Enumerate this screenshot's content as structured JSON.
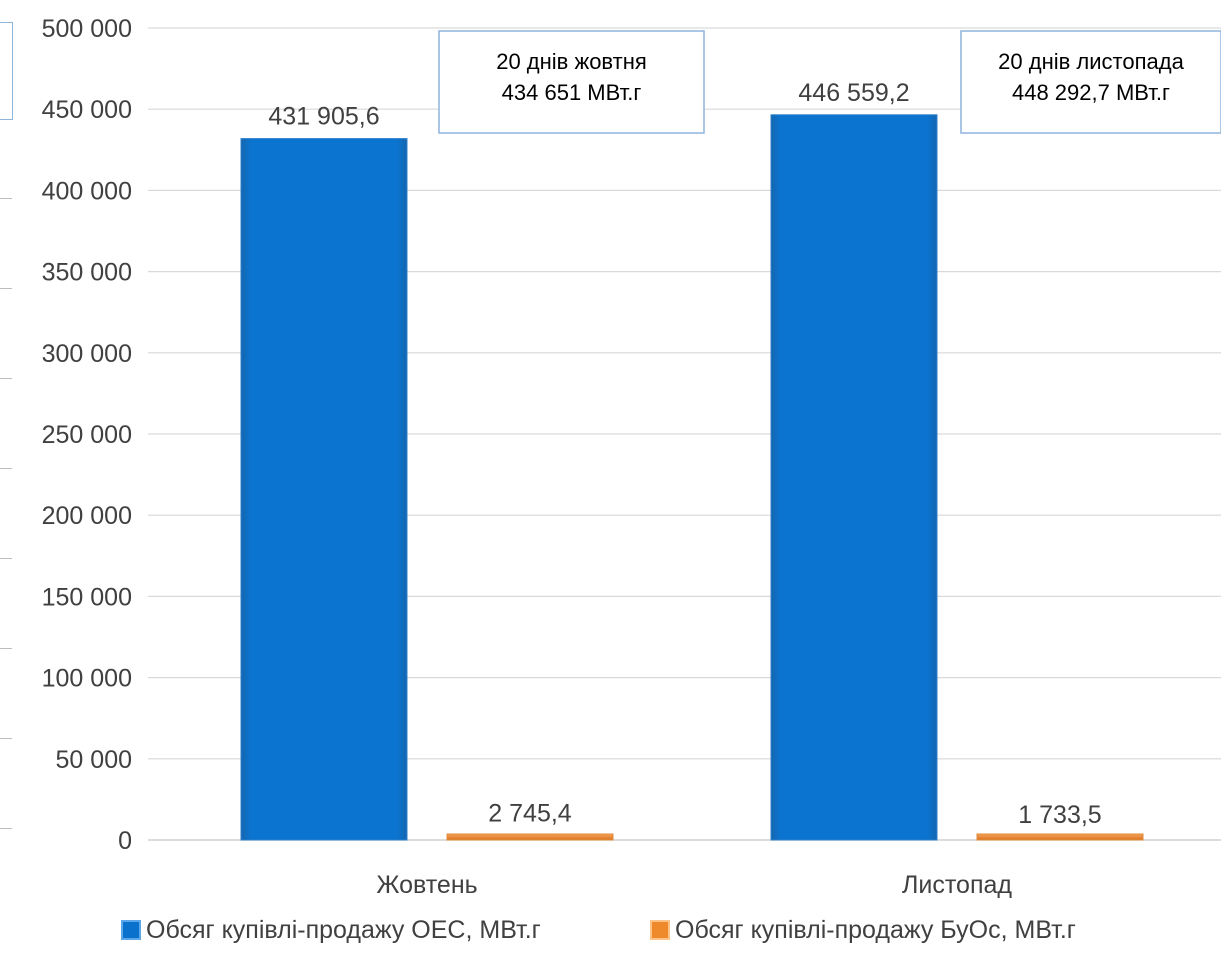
{
  "chart_data": {
    "type": "bar",
    "categories": [
      "Жовтень",
      "Листопад"
    ],
    "series": [
      {
        "name": "Обсяг купівлі-продажу ОЕС, МВт.г",
        "values": [
          431905.6,
          446559.2
        ],
        "labels": [
          "431 905,6",
          "446 559,2"
        ],
        "color": "#0a72cc"
      },
      {
        "name": "Обсяг купівлі-продажу БуОс, МВт.г",
        "values": [
          2745.4,
          1733.5
        ],
        "labels": [
          "2 745,4",
          "1 733,5"
        ],
        "color": "#ef8a2c"
      }
    ],
    "ylim": [
      0,
      500000
    ],
    "yticks": [
      0,
      50000,
      100000,
      150000,
      200000,
      250000,
      300000,
      350000,
      400000,
      450000,
      500000
    ],
    "ytick_labels": [
      "0",
      "50 000",
      "100 000",
      "150 000",
      "200 000",
      "250 000",
      "300 000",
      "350 000",
      "400 000",
      "450 000",
      "500 000"
    ],
    "grid": true,
    "legend_position": "bottom",
    "annotations": [
      {
        "category": "Жовтень",
        "lines": [
          "20 днів жовтня",
          "434 651 МВт.г"
        ]
      },
      {
        "category": "Листопад",
        "lines": [
          "20 днів листопада",
          "448 292,7 МВт.г"
        ]
      }
    ]
  }
}
